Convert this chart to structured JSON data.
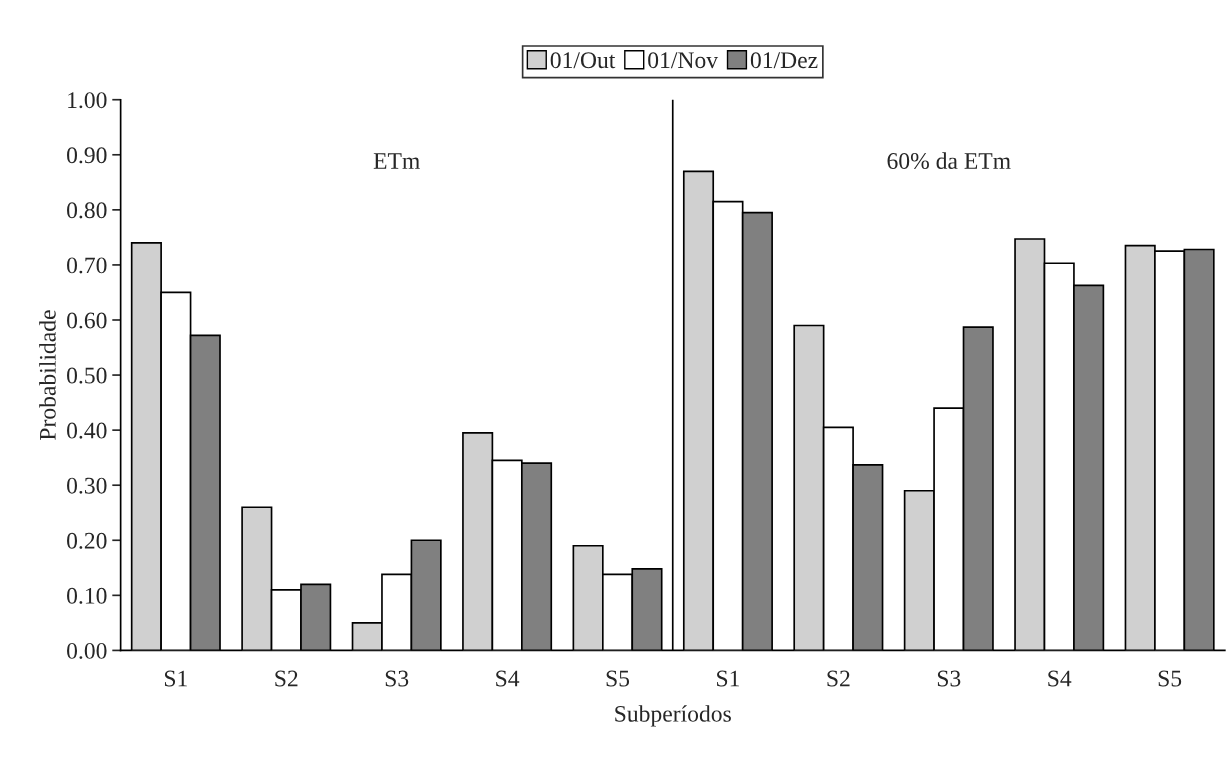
{
  "chart_data": {
    "type": "bar",
    "xlabel": "Subperíodos",
    "ylabel": "Probabilidade",
    "categories": [
      "S1",
      "S2",
      "S3",
      "S4",
      "S5",
      "S1",
      "S2",
      "S3",
      "S4",
      "S5"
    ],
    "series": [
      {
        "name": "01/Out",
        "color": "#d0d0d0",
        "values": [
          0.74,
          0.26,
          0.05,
          0.395,
          0.19,
          0.87,
          0.59,
          0.29,
          0.747,
          0.735
        ]
      },
      {
        "name": "01/Nov",
        "color": "#ffffff",
        "values": [
          0.65,
          0.11,
          0.138,
          0.345,
          0.138,
          0.815,
          0.405,
          0.44,
          0.703,
          0.725
        ]
      },
      {
        "name": "01/Dez",
        "color": "#808080",
        "values": [
          0.572,
          0.12,
          0.2,
          0.34,
          0.148,
          0.795,
          0.337,
          0.587,
          0.663,
          0.728
        ]
      }
    ],
    "ylim": [
      0,
      1
    ],
    "yticks": [
      {
        "value": 0,
        "label": "0.00"
      },
      {
        "value": 0.1,
        "label": "0.10"
      },
      {
        "value": 0.2,
        "label": "0.20"
      },
      {
        "value": 0.3,
        "label": "0.30"
      },
      {
        "value": 0.4,
        "label": "0.40"
      },
      {
        "value": 0.5,
        "label": "0.50"
      },
      {
        "value": 0.6,
        "label": "0.60"
      },
      {
        "value": 0.7,
        "label": "0.70"
      },
      {
        "value": 0.8,
        "label": "0.80"
      },
      {
        "value": 0.9,
        "label": "0.90"
      },
      {
        "value": 1,
        "label": "1.00"
      }
    ],
    "annotations": [
      "ETm",
      "60% da ETm"
    ],
    "grid": false,
    "legend": "top"
  }
}
